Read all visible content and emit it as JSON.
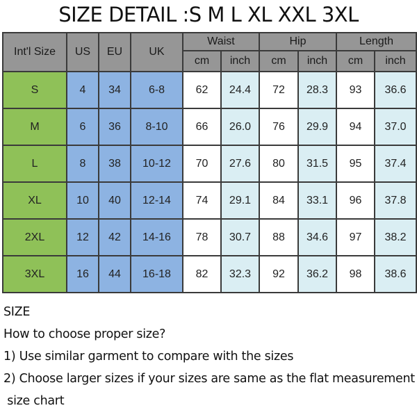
{
  "title": "SIZE DETAIL :S M L XL XXL 3XL",
  "headers": {
    "intl": "Int'l Size",
    "us": "US",
    "eu": "EU",
    "uk": "UK",
    "waist": "Waist",
    "hip": "Hip",
    "length": "Length",
    "cm": "cm",
    "inch": "inch"
  },
  "rows": [
    [
      "S",
      "4",
      "34",
      "6-8",
      "62",
      "24.4",
      "72",
      "28.3",
      "93",
      "36.6"
    ],
    [
      "M",
      "6",
      "36",
      "8-10",
      "66",
      "26.0",
      "76",
      "29.9",
      "94",
      "37.0"
    ],
    [
      "L",
      "8",
      "38",
      "10-12",
      "70",
      "27.6",
      "80",
      "31.5",
      "95",
      "37.4"
    ],
    [
      "XL",
      "10",
      "40",
      "12-14",
      "74",
      "29.1",
      "84",
      "33.1",
      "96",
      "37.8"
    ],
    [
      "2XL",
      "12",
      "42",
      "14-16",
      "78",
      "30.7",
      "88",
      "34.6",
      "97",
      "38.2"
    ],
    [
      "3XL",
      "16",
      "44",
      "16-18",
      "82",
      "32.3",
      "92",
      "36.2",
      "98",
      "38.6"
    ]
  ],
  "notes": [
    "SIZE",
    "How to choose proper size?",
    "1) Use similar garment to compare with the sizes",
    "2) Choose larger sizes if your sizes are same as the flat measurement",
    " size chart"
  ],
  "colors": {
    "header": "#969696",
    "intl": "#8fc158",
    "region": "#8db3e2",
    "inch": "#daeef3"
  }
}
